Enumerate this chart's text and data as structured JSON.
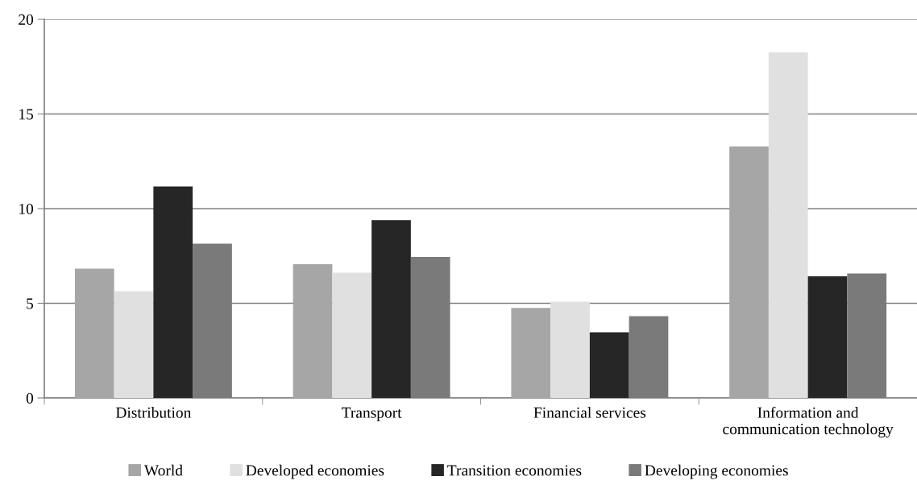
{
  "chart_data": {
    "type": "bar",
    "categories": [
      "Distribution",
      "Transport",
      "Financial services",
      "Information and\ncommunication technology"
    ],
    "series": [
      {
        "name": "World",
        "color": "#a6a6a6",
        "values": [
          6.83,
          7.06,
          4.75,
          13.29
        ]
      },
      {
        "name": "Developed economies",
        "color": "#e0e0e0",
        "values": [
          5.64,
          6.62,
          5.08,
          18.26
        ]
      },
      {
        "name": "Transition economies",
        "color": "#262626",
        "values": [
          11.17,
          9.39,
          3.47,
          6.43
        ]
      },
      {
        "name": "Developing economies",
        "color": "#7a7a7a",
        "values": [
          8.15,
          7.45,
          4.32,
          6.57
        ]
      }
    ],
    "ylim": [
      0,
      20
    ],
    "yticks": [
      0,
      5,
      10,
      15,
      20
    ],
    "grid": "y",
    "legend": "bottom"
  }
}
